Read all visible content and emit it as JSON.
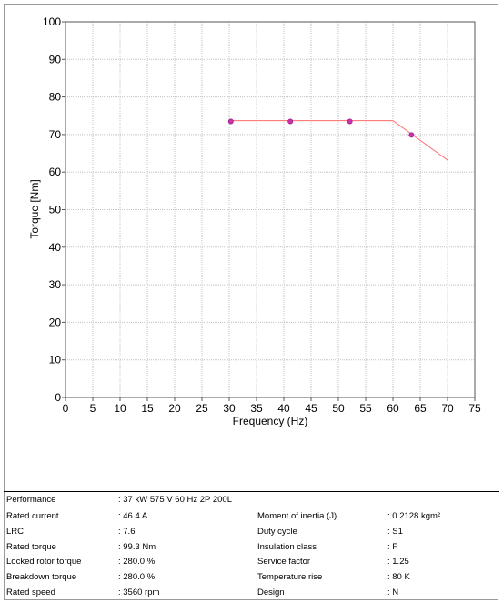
{
  "chart_data": {
    "type": "line",
    "xlabel": "Frequency (Hz)",
    "ylabel": "Torque [Nm]",
    "xlim": [
      0,
      75
    ],
    "ylim": [
      0,
      100
    ],
    "x_ticks": [
      "0",
      "5",
      "10",
      "15",
      "20",
      "25",
      "30",
      "35",
      "40",
      "45",
      "50",
      "55",
      "60",
      "65",
      "70",
      "75"
    ],
    "y_ticks": [
      "0",
      "10",
      "20",
      "30",
      "40",
      "50",
      "60",
      "70",
      "80",
      "90",
      "100"
    ],
    "grid": true,
    "series": [
      {
        "x": [
          30,
          60,
          70
        ],
        "y": [
          73.7,
          73.7,
          63.2
        ],
        "color": "#ff6b6b"
      }
    ],
    "markers": {
      "x": [
        30.3,
        41.2,
        52.1,
        63.4
      ],
      "y": [
        73.5,
        73.5,
        73.5,
        69.9
      ],
      "color": "#cc33aa"
    }
  },
  "specs": {
    "performance": {
      "label": "Performance",
      "value": ": 37 kW 575 V 60 Hz 2P 200L"
    },
    "left": [
      {
        "label": "Rated current",
        "value": ": 46.4 A"
      },
      {
        "label": "LRC",
        "value": ": 7.6"
      },
      {
        "label": "Rated torque",
        "value": ": 99.3 Nm"
      },
      {
        "label": "Locked rotor torque",
        "value": ": 280.0 %"
      },
      {
        "label": "Breakdown torque",
        "value": ": 280.0 %"
      },
      {
        "label": "Rated speed",
        "value": ": 3560 rpm"
      }
    ],
    "right": [
      {
        "label": "Moment of inertia (J)",
        "value": ": 0.2128 kgm²"
      },
      {
        "label": "Duty cycle",
        "value": ": S1"
      },
      {
        "label": "Insulation class",
        "value": ": F"
      },
      {
        "label": "Service factor",
        "value": ": 1.25"
      },
      {
        "label": "Temperature rise",
        "value": ": 80 K"
      },
      {
        "label": "Design",
        "value": ": N"
      }
    ]
  }
}
